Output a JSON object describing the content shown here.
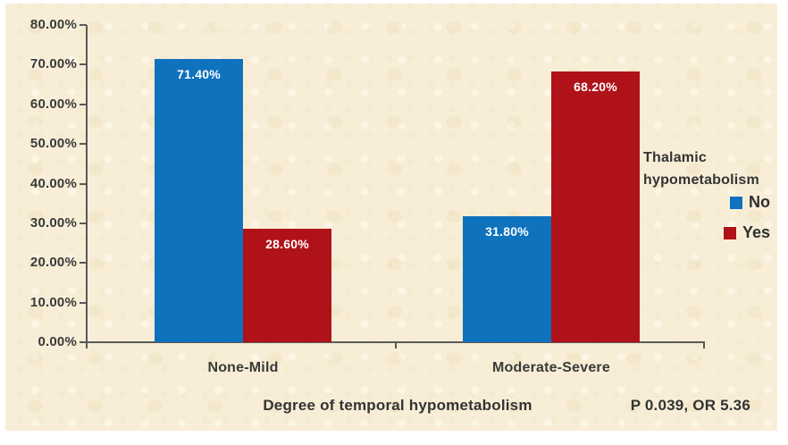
{
  "chart_data": {
    "type": "bar",
    "categories": [
      "None-Mild",
      "Moderate-Severe"
    ],
    "series": [
      {
        "name": "No",
        "color": "#0e72bd",
        "values": [
          71.4,
          31.8
        ],
        "labels": [
          "71.40%",
          "31.80%"
        ]
      },
      {
        "name": "Yes",
        "color": "#b01219",
        "values": [
          28.6,
          68.2
        ],
        "labels": [
          "28.60%",
          "68.20%"
        ]
      }
    ],
    "xlabel": "Degree of temporal hypometabolism",
    "ylabel": "",
    "ylim": [
      0,
      80
    ],
    "ytick_step": 10,
    "ytick_labels": [
      "0.00%",
      "10.00%",
      "20.00%",
      "30.00%",
      "40.00%",
      "50.00%",
      "60.00%",
      "70.00%",
      "80.00%"
    ],
    "grid": false,
    "legend_title": "Thalamic hypometabolism",
    "legend_position": "right",
    "annotation": "P 0.039, OR 5.36",
    "colors": {
      "background": "#f8eed7",
      "axis": "#595959",
      "text": "#3a3a3a",
      "bar_label_text": "#ffffff"
    }
  }
}
